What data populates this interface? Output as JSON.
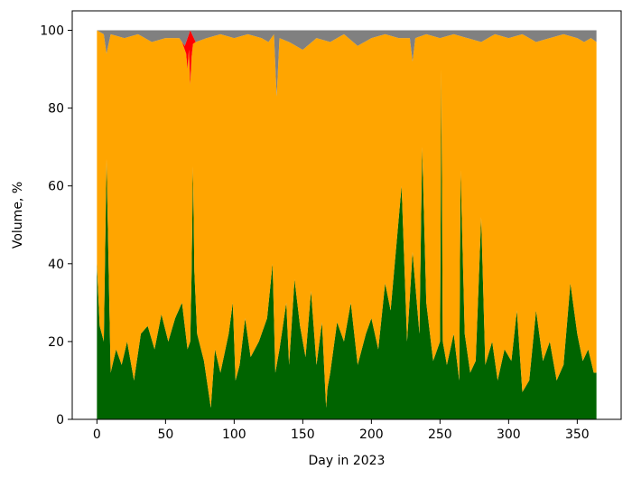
{
  "chart_data": {
    "type": "area",
    "stacked": true,
    "xlabel": "Day in 2023",
    "ylabel": "Volume, %",
    "xlim": [
      -18,
      382
    ],
    "ylim": [
      0,
      105
    ],
    "xticks": [
      0,
      50,
      100,
      150,
      200,
      250,
      300,
      350
    ],
    "yticks": [
      0,
      20,
      40,
      60,
      80,
      100
    ],
    "grid": false,
    "legend": "none",
    "series_colors": [
      "#006400",
      "#ffa500",
      "#ff0000",
      "#808080"
    ],
    "x_range": [
      0,
      364
    ],
    "series": [
      {
        "color": "#006400",
        "x": [
          0,
          2,
          5,
          7,
          10,
          14,
          18,
          22,
          27,
          32,
          37,
          42,
          47,
          52,
          57,
          62,
          66,
          68,
          69,
          70,
          71,
          73,
          78,
          83,
          86,
          90,
          96,
          99,
          101,
          104,
          108,
          112,
          118,
          124,
          128,
          130,
          133,
          138,
          140,
          144,
          148,
          152,
          156,
          160,
          164,
          167,
          168,
          170,
          175,
          180,
          185,
          190,
          196,
          200,
          205,
          210,
          214,
          218,
          222,
          226,
          230,
          235,
          237,
          240,
          245,
          250,
          251,
          252,
          255,
          260,
          264,
          265,
          268,
          272,
          276,
          280,
          283,
          288,
          292,
          297,
          302,
          306,
          310,
          315,
          320,
          325,
          330,
          335,
          340,
          345,
          350,
          354,
          358,
          362,
          364
        ],
        "values": [
          40,
          24,
          20,
          67,
          12,
          18,
          14,
          20,
          10,
          22,
          24,
          18,
          27,
          20,
          26,
          30,
          18,
          20,
          38,
          65,
          38,
          22,
          15,
          3,
          18,
          12,
          22,
          30,
          10,
          14,
          26,
          16,
          20,
          26,
          40,
          12,
          18,
          30,
          14,
          36,
          24,
          16,
          33,
          14,
          25,
          3,
          8,
          12,
          25,
          20,
          30,
          14,
          22,
          26,
          18,
          35,
          28,
          44,
          60,
          20,
          43,
          22,
          70,
          30,
          15,
          20,
          90,
          20,
          14,
          22,
          10,
          64,
          22,
          12,
          15,
          52,
          14,
          20,
          10,
          18,
          15,
          28,
          7,
          10,
          28,
          15,
          20,
          10,
          14,
          35,
          22,
          15,
          18,
          12,
          12
        ]
      },
      {
        "color": "#ffa500",
        "x": [
          0,
          364
        ],
        "values": [
          60,
          60
        ]
      },
      {
        "color": "#ff0000",
        "x": [
          0,
          62,
          64,
          65,
          66,
          67,
          68,
          69,
          70,
          72,
          364
        ],
        "values": [
          0,
          0,
          1,
          3,
          8,
          4,
          14,
          6,
          2,
          0,
          0
        ]
      },
      {
        "color": "#808080",
        "x": [
          0,
          5,
          7,
          10,
          20,
          30,
          40,
          50,
          60,
          64,
          68,
          72,
          80,
          90,
          100,
          110,
          120,
          125,
          129,
          131,
          133,
          140,
          150,
          160,
          170,
          180,
          190,
          200,
          210,
          220,
          228,
          230,
          232,
          240,
          250,
          260,
          270,
          280,
          290,
          300,
          310,
          320,
          330,
          340,
          350,
          355,
          360,
          364
        ],
        "values": [
          0,
          1,
          6,
          1,
          2,
          1,
          3,
          2,
          2,
          4,
          0,
          3,
          2,
          1,
          2,
          1,
          2,
          3,
          1,
          17,
          2,
          3,
          5,
          2,
          3,
          1,
          4,
          2,
          1,
          2,
          2,
          8,
          2,
          1,
          2,
          1,
          2,
          3,
          1,
          2,
          1,
          3,
          2,
          1,
          2,
          3,
          2,
          3
        ]
      }
    ]
  }
}
